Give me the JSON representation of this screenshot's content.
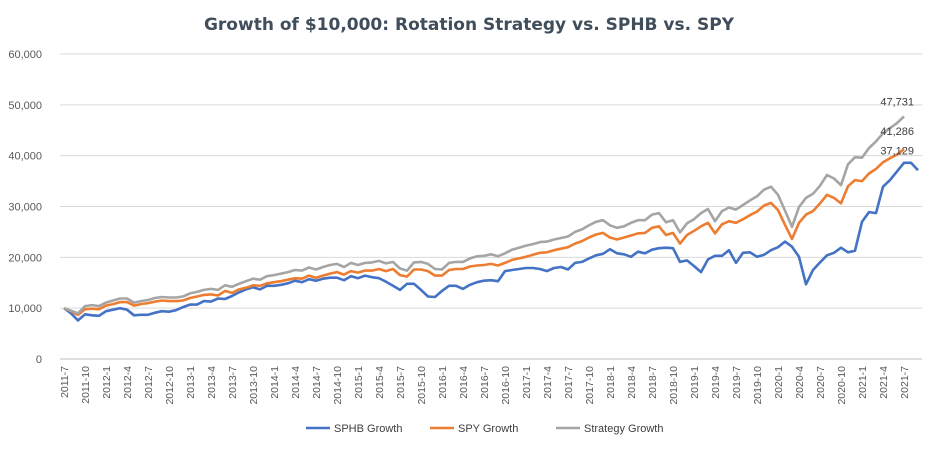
{
  "chart_data": {
    "type": "line",
    "title": "Growth of $10,000: Rotation Strategy vs. SPHB vs. SPY",
    "xlabel": "",
    "ylabel": "",
    "ylim": [
      0,
      60000
    ],
    "y_ticks": [
      "0",
      "10,000",
      "20,000",
      "30,000",
      "40,000",
      "50,000",
      "60,000"
    ],
    "grid": true,
    "legend_position": "bottom",
    "x_tick_labels": [
      "2011-7",
      "2011-10",
      "2012-1",
      "2012-4",
      "2012-7",
      "2012-10",
      "2013-1",
      "2013-4",
      "2013-7",
      "2013-10",
      "2014-1",
      "2014-4",
      "2014-7",
      "2014-10",
      "2015-1",
      "2015-4",
      "2015-7",
      "2015-10",
      "2016-1",
      "2016-4",
      "2016-7",
      "2016-10",
      "2017-1",
      "2017-4",
      "2017-7",
      "2017-10",
      "2018-1",
      "2018-4",
      "2018-7",
      "2018-10",
      "2019-1",
      "2019-4",
      "2019-7",
      "2019-10",
      "2020-1",
      "2020-4",
      "2020-7",
      "2020-10",
      "2021-1",
      "2021-4",
      "2021-7"
    ],
    "series": [
      {
        "name": "SPHB Growth",
        "color": "#4472c4",
        "end_label": "37,129",
        "values": [
          10000,
          9000,
          7600,
          8800,
          8600,
          8500,
          9400,
          9700,
          10000,
          9700,
          8600,
          8700,
          8700,
          9100,
          9400,
          9300,
          9600,
          10200,
          10700,
          10700,
          11400,
          11300,
          11900,
          11800,
          12400,
          13100,
          13700,
          14100,
          13700,
          14400,
          14400,
          14600,
          14900,
          15400,
          15100,
          15700,
          15400,
          15800,
          16000,
          16000,
          15500,
          16300,
          15900,
          16400,
          16100,
          15900,
          15200,
          14400,
          13600,
          14800,
          14800,
          13600,
          12300,
          12200,
          13400,
          14400,
          14400,
          13800,
          14600,
          15100,
          15400,
          15500,
          15300,
          17300,
          17500,
          17700,
          17900,
          17900,
          17700,
          17300,
          17900,
          18100,
          17600,
          18900,
          19100,
          19800,
          20400,
          20700,
          21600,
          20800,
          20600,
          20100,
          21100,
          20800,
          21500,
          21800,
          21900,
          21800,
          19100,
          19400,
          18300,
          17100,
          19600,
          20300,
          20300,
          21400,
          18900,
          20900,
          21000,
          20100,
          20500,
          21400,
          22000,
          23100,
          22100,
          20100,
          14700,
          17500,
          19000,
          20400,
          20900,
          21900,
          21000,
          21300,
          27000,
          28900,
          28700,
          33900,
          35200,
          36900,
          38600,
          38600,
          37129
        ]
      },
      {
        "name": "SPY Growth",
        "color": "#ed7d31",
        "end_label": "41,286",
        "values": [
          10000,
          9400,
          8700,
          9800,
          9900,
          9800,
          10500,
          10800,
          11200,
          11200,
          10500,
          10800,
          11000,
          11300,
          11500,
          11400,
          11400,
          11500,
          12000,
          12300,
          12600,
          12700,
          12500,
          13400,
          13000,
          13700,
          14000,
          14500,
          14400,
          14900,
          15100,
          15300,
          15600,
          15900,
          15800,
          16400,
          16000,
          16400,
          16800,
          17100,
          16600,
          17300,
          17000,
          17400,
          17400,
          17700,
          17300,
          17700,
          16500,
          16200,
          17600,
          17600,
          17300,
          16400,
          16400,
          17500,
          17700,
          17700,
          18200,
          18400,
          18500,
          18700,
          18400,
          18900,
          19500,
          19800,
          20100,
          20500,
          20900,
          21000,
          21400,
          21700,
          22000,
          22700,
          23200,
          23900,
          24500,
          24800,
          23900,
          23500,
          23900,
          24300,
          24700,
          24800,
          25800,
          26100,
          24400,
          24800,
          22700,
          24400,
          25200,
          26100,
          26800,
          24700,
          26500,
          27100,
          26800,
          27500,
          28300,
          29000,
          30200,
          30700,
          29300,
          26400,
          23600,
          26800,
          28400,
          29100,
          30600,
          32300,
          31700,
          30600,
          34000,
          35200,
          35000,
          36500,
          37400,
          38700,
          39500,
          40200,
          41286
        ]
      },
      {
        "name": "Strategy Growth",
        "color": "#a5a5a5",
        "end_label": "47,731",
        "values": [
          10000,
          9500,
          9000,
          10400,
          10600,
          10400,
          11100,
          11500,
          11900,
          11900,
          11100,
          11400,
          11600,
          12000,
          12200,
          12100,
          12100,
          12300,
          12900,
          13200,
          13600,
          13800,
          13600,
          14500,
          14200,
          14800,
          15300,
          15800,
          15600,
          16300,
          16500,
          16800,
          17100,
          17500,
          17400,
          18000,
          17600,
          18100,
          18500,
          18700,
          18100,
          18900,
          18500,
          18900,
          19000,
          19300,
          18800,
          19100,
          17800,
          17400,
          19000,
          19100,
          18700,
          17700,
          17600,
          18900,
          19100,
          19100,
          19800,
          20200,
          20300,
          20600,
          20200,
          20800,
          21500,
          21900,
          22300,
          22600,
          23000,
          23100,
          23500,
          23800,
          24100,
          25000,
          25500,
          26300,
          27000,
          27300,
          26300,
          25800,
          26100,
          26800,
          27300,
          27300,
          28400,
          28700,
          26900,
          27300,
          24900,
          26700,
          27500,
          28700,
          29500,
          27100,
          29100,
          29800,
          29400,
          30300,
          31200,
          32000,
          33300,
          33900,
          32300,
          29200,
          26000,
          29900,
          31700,
          32500,
          34100,
          36200,
          35500,
          34200,
          38300,
          39700,
          39600,
          41500,
          42800,
          44400,
          45400,
          46400,
          47731
        ]
      }
    ]
  }
}
